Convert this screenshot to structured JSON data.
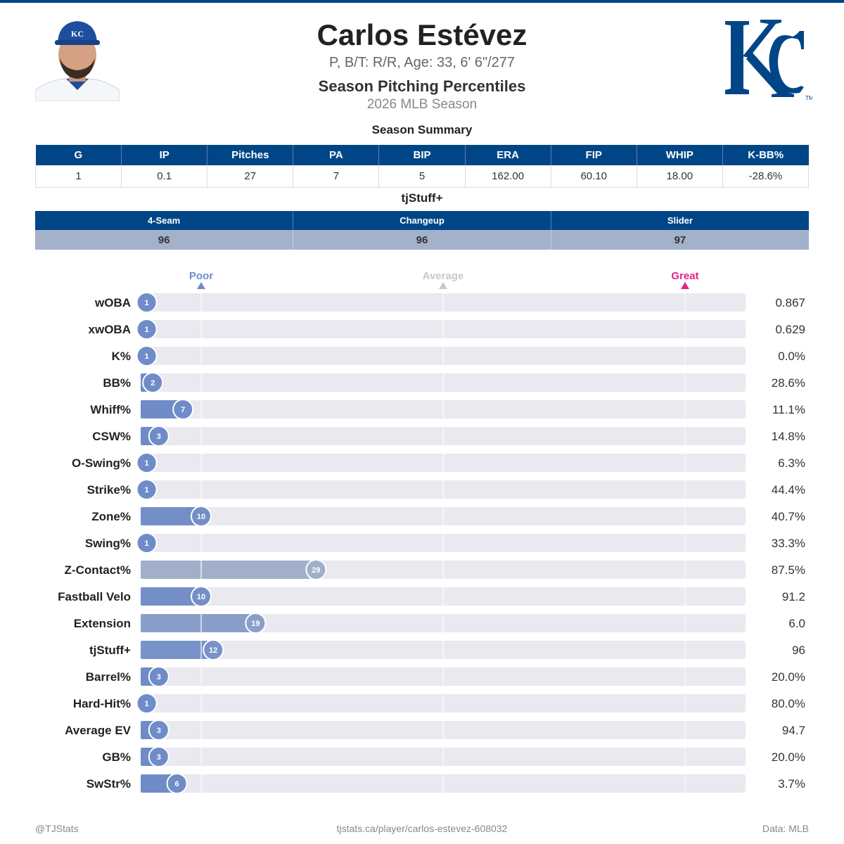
{
  "header": {
    "player_name": "Carlos Estévez",
    "bio": "P, B/T: R/R, Age: 33, 6' 6\"/277",
    "report_title": "Season Pitching Percentiles",
    "season": "2026 MLB Season"
  },
  "colors": {
    "brand": "#004687",
    "bar_low": "#6f8cc8",
    "bar_mid": "#a3b1cb",
    "track": "#e9e9ef",
    "poor": "#6f8cc8",
    "average": "#c8c8c8",
    "great": "#e0248a"
  },
  "summary": {
    "title": "Season Summary",
    "headers": [
      "G",
      "IP",
      "Pitches",
      "PA",
      "BIP",
      "ERA",
      "FIP",
      "WHIP",
      "K-BB%"
    ],
    "values": [
      "1",
      "0.1",
      "27",
      "7",
      "5",
      "162.00",
      "60.10",
      "18.00",
      "-28.6%"
    ]
  },
  "tjstuff": {
    "title": "tjStuff+",
    "headers": [
      "4-Seam",
      "Changeup",
      "Slider"
    ],
    "values": [
      "96",
      "96",
      "97"
    ]
  },
  "chart_data": {
    "type": "bar",
    "orientation": "horizontal",
    "xlim": [
      0,
      100
    ],
    "scale_markers": [
      {
        "label": "Poor",
        "value": 10
      },
      {
        "label": "Average",
        "value": 50
      },
      {
        "label": "Great",
        "value": 90
      }
    ],
    "metrics": [
      {
        "label": "wOBA",
        "percentile": 1,
        "value": "0.867"
      },
      {
        "label": "xwOBA",
        "percentile": 1,
        "value": "0.629"
      },
      {
        "label": "K%",
        "percentile": 1,
        "value": "0.0%"
      },
      {
        "label": "BB%",
        "percentile": 2,
        "value": "28.6%"
      },
      {
        "label": "Whiff%",
        "percentile": 7,
        "value": "11.1%"
      },
      {
        "label": "CSW%",
        "percentile": 3,
        "value": "14.8%"
      },
      {
        "label": "O-Swing%",
        "percentile": 1,
        "value": "6.3%"
      },
      {
        "label": "Strike%",
        "percentile": 1,
        "value": "44.4%"
      },
      {
        "label": "Zone%",
        "percentile": 10,
        "value": "40.7%"
      },
      {
        "label": "Swing%",
        "percentile": 1,
        "value": "33.3%"
      },
      {
        "label": "Z-Contact%",
        "percentile": 29,
        "value": "87.5%"
      },
      {
        "label": "Fastball Velo",
        "percentile": 10,
        "value": "91.2"
      },
      {
        "label": "Extension",
        "percentile": 19,
        "value": "6.0"
      },
      {
        "label": "tjStuff+",
        "percentile": 12,
        "value": "96"
      },
      {
        "label": "Barrel%",
        "percentile": 3,
        "value": "20.0%"
      },
      {
        "label": "Hard-Hit%",
        "percentile": 1,
        "value": "80.0%"
      },
      {
        "label": "Average EV",
        "percentile": 3,
        "value": "94.7"
      },
      {
        "label": "GB%",
        "percentile": 3,
        "value": "20.0%"
      },
      {
        "label": "SwStr%",
        "percentile": 6,
        "value": "3.7%"
      }
    ]
  },
  "footer": {
    "handle": "@TJStats",
    "url": "tjstats.ca/player/carlos-estevez-608032",
    "source": "Data: MLB"
  }
}
